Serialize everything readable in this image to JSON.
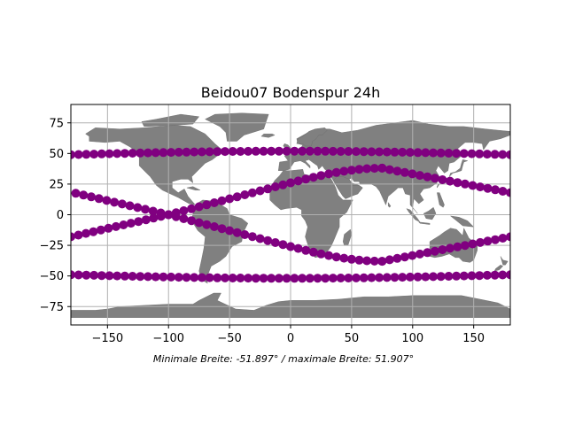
{
  "chart_data": {
    "type": "scatter",
    "title": "Beidou07 Bodenspur 24h",
    "caption": "Minimale Breite: -51.897° / maximale Breite: 51.907°",
    "xlim": [
      -180,
      180
    ],
    "ylim": [
      -90,
      90
    ],
    "x_ticks": [
      -150,
      -100,
      -50,
      0,
      50,
      100,
      150
    ],
    "x_tick_labels": [
      "−150",
      "−100",
      "−50",
      "0",
      "50",
      "100",
      "150"
    ],
    "y_ticks": [
      -75,
      -50,
      -25,
      0,
      25,
      50,
      75
    ],
    "y_tick_labels": [
      "−75",
      "−50",
      "−25",
      "0",
      "25",
      "50",
      "75"
    ],
    "grid": true,
    "colors": {
      "track": "#800080",
      "land": "#808080",
      "grid": "#b0b0b0"
    },
    "ground_track": {
      "min_lat": -51.897,
      "max_lat": 51.907,
      "segments": [
        {
          "lon_start": -180,
          "lon_end": 180,
          "lat_start": 49.0,
          "lat_end": 49.0,
          "amplitude": 2.9,
          "shape": "arc-up"
        },
        {
          "lon_start": -180,
          "lon_end": 180,
          "lat_start": -49.0,
          "lat_end": -49.0,
          "amplitude": 2.9,
          "shape": "arc-down"
        },
        {
          "lon_start": -176,
          "lon_end": -100,
          "lat_start": 17.5,
          "lat_end": 0,
          "shape": "line"
        },
        {
          "lon_start": -100,
          "lon_end": 0,
          "lat_start": 0,
          "lat_end": -26,
          "shape": "line"
        },
        {
          "lon_start": 0,
          "lon_end": 75,
          "lat_start": -26,
          "lat_end": -38,
          "shape": "curve"
        },
        {
          "lon_start": 75,
          "lon_end": 180,
          "lat_start": -38,
          "lat_end": -18,
          "shape": "line"
        },
        {
          "lon_start": -180,
          "lon_end": -100,
          "lat_start": -18,
          "lat_end": 0,
          "shape": "line"
        },
        {
          "lon_start": -100,
          "lon_end": 0,
          "lat_start": 0,
          "lat_end": 26,
          "shape": "line"
        },
        {
          "lon_start": 0,
          "lon_end": 75,
          "lat_start": 26,
          "lat_end": 38,
          "shape": "curve"
        },
        {
          "lon_start": 75,
          "lon_end": 180,
          "lat_start": 38,
          "lat_end": 18,
          "shape": "line"
        }
      ]
    }
  }
}
